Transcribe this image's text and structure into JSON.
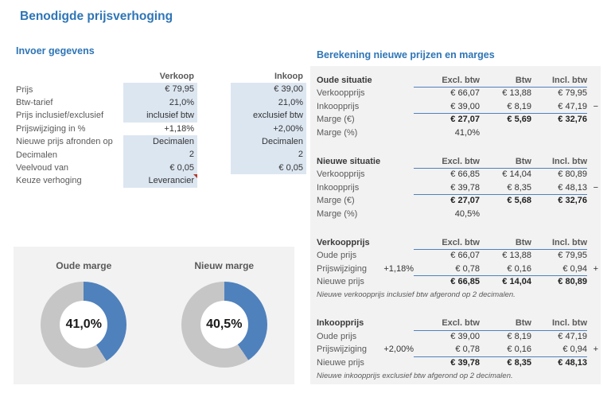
{
  "page": {
    "title": "Benodigde prijsverhoging"
  },
  "colors": {
    "accent_blue": "#2e75b6",
    "rule_blue": "#4f81bd",
    "input_cell_bg": "#dce6f1",
    "panel_bg": "#f2f2f2"
  },
  "input": {
    "section_title": "Invoer gegevens",
    "col_verkoop": "Verkoop",
    "col_inkoop": "Inkoop",
    "rows": [
      {
        "label": "Prijs",
        "verkoop": "€ 79,95",
        "inkoop": "€ 39,00"
      },
      {
        "label": "Btw-tarief",
        "verkoop": "21,0%",
        "inkoop": "21,0%"
      },
      {
        "label": "Prijs inclusief/exclusief",
        "verkoop": "inclusief btw",
        "inkoop": "exclusief btw"
      },
      {
        "label": "Prijswijziging in %",
        "verkoop": "+1,18%",
        "inkoop": "+2,00%"
      },
      {
        "label": "Nieuwe prijs afronden op",
        "verkoop": "Decimalen",
        "inkoop": "Decimalen"
      },
      {
        "label": "Decimalen",
        "verkoop": "2",
        "inkoop": "2"
      },
      {
        "label": "Veelvoud van",
        "verkoop": "€ 0,05",
        "inkoop": "€ 0,05"
      },
      {
        "label": "Keuze verhoging",
        "verkoop": "Leverancier",
        "inkoop": ""
      }
    ]
  },
  "charts": {
    "colors": {
      "filled": "#4f81bd",
      "rest": "#c6c6c6"
    },
    "donuts": [
      {
        "title": "Oude marge",
        "label": "41,0%",
        "pct": 41.0
      },
      {
        "title": "Nieuw marge",
        "label": "40,5%",
        "pct": 40.5
      }
    ]
  },
  "chart_data": [
    {
      "type": "pie",
      "title": "Oude marge",
      "categories": [
        "Marge",
        "Rest"
      ],
      "values": [
        41.0,
        59.0
      ],
      "center_label": "41,0%"
    },
    {
      "type": "pie",
      "title": "Nieuw marge",
      "categories": [
        "Marge",
        "Rest"
      ],
      "values": [
        40.5,
        59.5
      ],
      "center_label": "40,5%"
    }
  ],
  "calc": {
    "section_title": "Berekening nieuwe prijzen en marges",
    "col_headers": [
      "Excl. btw",
      "Btw",
      "Incl. btw"
    ],
    "blocks": [
      {
        "title": "Oude situatie",
        "rows": [
          {
            "label": "Verkoopprijs",
            "pct": "",
            "values": [
              "€ 66,07",
              "€ 13,88",
              "€ 79,95"
            ],
            "sign": ""
          },
          {
            "label": "Inkoopprijs",
            "pct": "",
            "values": [
              "€ 39,00",
              "€ 8,19",
              "€ 47,19"
            ],
            "sign": "−"
          },
          {
            "label": "Marge (€)",
            "pct": "",
            "values": [
              "€ 27,07",
              "€ 5,69",
              "€ 32,76"
            ],
            "sign": ""
          },
          {
            "label": "Marge (%)",
            "pct": "",
            "values": [
              "41,0%",
              "",
              ""
            ],
            "sign": ""
          }
        ],
        "note": ""
      },
      {
        "title": "Nieuwe situatie",
        "rows": [
          {
            "label": "Verkoopprijs",
            "pct": "",
            "values": [
              "€ 66,85",
              "€ 14,04",
              "€ 80,89"
            ],
            "sign": ""
          },
          {
            "label": "Inkoopprijs",
            "pct": "",
            "values": [
              "€ 39,78",
              "€ 8,35",
              "€ 48,13"
            ],
            "sign": "−"
          },
          {
            "label": "Marge (€)",
            "pct": "",
            "values": [
              "€ 27,07",
              "€ 5,68",
              "€ 32,76"
            ],
            "sign": ""
          },
          {
            "label": "Marge (%)",
            "pct": "",
            "values": [
              "40,5%",
              "",
              ""
            ],
            "sign": ""
          }
        ],
        "note": ""
      },
      {
        "title": "Verkoopprijs",
        "rows": [
          {
            "label": "Oude prijs",
            "pct": "",
            "values": [
              "€ 66,07",
              "€ 13,88",
              "€ 79,95"
            ],
            "sign": ""
          },
          {
            "label": "Prijswijziging",
            "pct": "+1,18%",
            "values": [
              "€ 0,78",
              "€ 0,16",
              "€ 0,94"
            ],
            "sign": "+"
          },
          {
            "label": "Nieuwe prijs",
            "pct": "",
            "values": [
              "€ 66,85",
              "€ 14,04",
              "€ 80,89"
            ],
            "sign": ""
          }
        ],
        "note": "Nieuwe verkoopprijs inclusief btw afgerond op 2 decimalen."
      },
      {
        "title": "Inkoopprijs",
        "rows": [
          {
            "label": "Oude prijs",
            "pct": "",
            "values": [
              "€ 39,00",
              "€ 8,19",
              "€ 47,19"
            ],
            "sign": ""
          },
          {
            "label": "Prijswijziging",
            "pct": "+2,00%",
            "values": [
              "€ 0,78",
              "€ 0,16",
              "€ 0,94"
            ],
            "sign": "+"
          },
          {
            "label": "Nieuwe prijs",
            "pct": "",
            "values": [
              "€ 39,78",
              "€ 8,35",
              "€ 48,13"
            ],
            "sign": ""
          }
        ],
        "note": "Nieuwe inkoopprijs exclusief btw afgerond op 2 decimalen."
      }
    ]
  }
}
